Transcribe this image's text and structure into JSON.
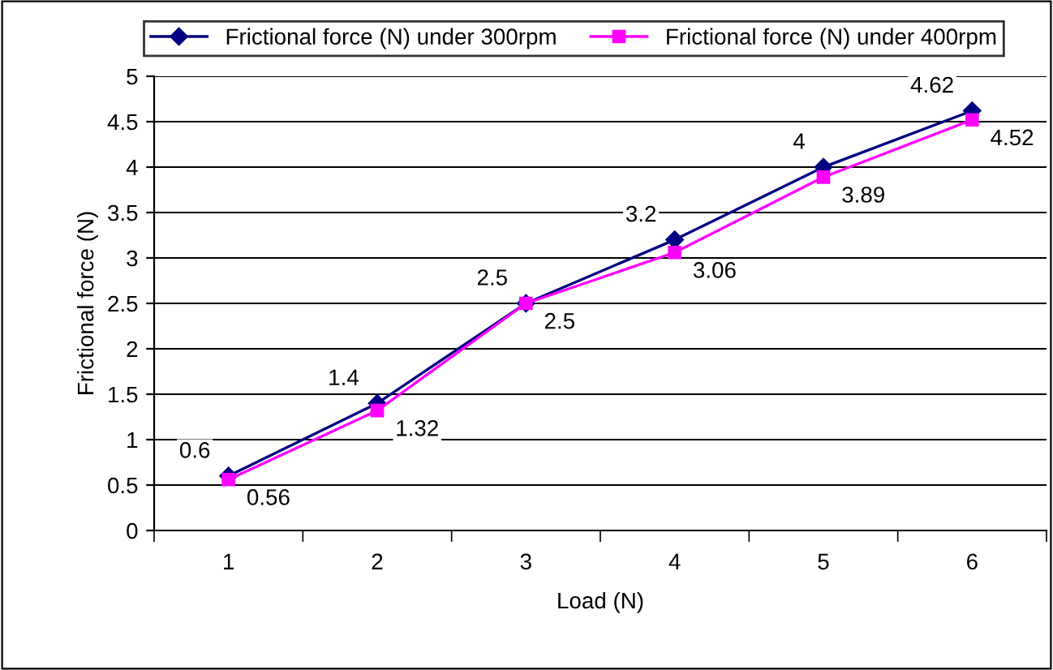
{
  "chart_data": {
    "type": "line",
    "xlabel": "Load (N)",
    "ylabel": "Frictional force (N)",
    "categories": [
      "1",
      "2",
      "3",
      "4",
      "5",
      "6"
    ],
    "series": [
      {
        "name": "Frictional force (N) under 300rpm",
        "color": "#000080",
        "marker": "diamond",
        "values": [
          0.6,
          1.4,
          2.5,
          3.2,
          4,
          4.62
        ]
      },
      {
        "name": "Frictional force (N) under 400rpm",
        "color": "#ff00ff",
        "marker": "square",
        "values": [
          0.56,
          1.32,
          2.5,
          3.06,
          3.89,
          4.52
        ]
      }
    ],
    "ylim": [
      0,
      5
    ],
    "yticks": [
      0,
      0.5,
      1,
      1.5,
      2,
      2.5,
      3,
      3.5,
      4,
      4.5,
      5
    ],
    "grid": "y",
    "legend": "top",
    "data_labels": true,
    "line_style": "solid"
  }
}
